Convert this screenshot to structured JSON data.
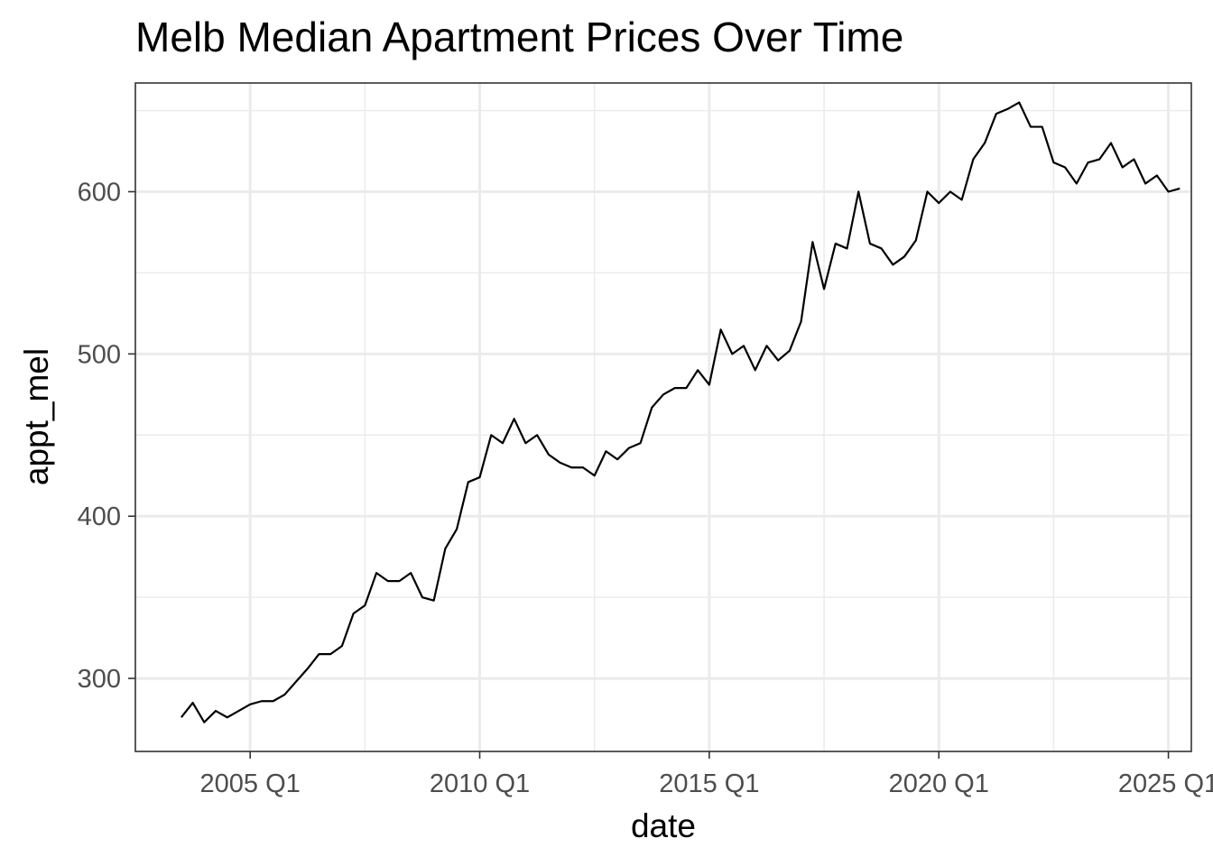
{
  "chart_data": {
    "type": "line",
    "title": "Melb Median Apartment Prices Over Time",
    "xlabel": "date",
    "ylabel": "appt_mel",
    "x_axis": {
      "ticks": [
        "2005 Q1",
        "2010 Q1",
        "2015 Q1",
        "2020 Q1",
        "2025 Q1"
      ],
      "range": [
        "2002 Q3",
        "2025 Q3"
      ]
    },
    "y_axis": {
      "ticks": [
        300,
        400,
        500,
        600
      ],
      "range": [
        255,
        667
      ]
    },
    "grid": true,
    "series": [
      {
        "color": "#000000",
        "x": [
          "2003 Q3",
          "2003 Q4",
          "2004 Q1",
          "2004 Q2",
          "2004 Q3",
          "2004 Q4",
          "2005 Q1",
          "2005 Q2",
          "2005 Q3",
          "2005 Q4",
          "2006 Q1",
          "2006 Q2",
          "2006 Q3",
          "2006 Q4",
          "2007 Q1",
          "2007 Q2",
          "2007 Q3",
          "2007 Q4",
          "2008 Q1",
          "2008 Q2",
          "2008 Q3",
          "2008 Q4",
          "2009 Q1",
          "2009 Q2",
          "2009 Q3",
          "2009 Q4",
          "2010 Q1",
          "2010 Q2",
          "2010 Q3",
          "2010 Q4",
          "2011 Q1",
          "2011 Q2",
          "2011 Q3",
          "2011 Q4",
          "2012 Q1",
          "2012 Q2",
          "2012 Q3",
          "2012 Q4",
          "2013 Q1",
          "2013 Q2",
          "2013 Q3",
          "2013 Q4",
          "2014 Q1",
          "2014 Q2",
          "2014 Q3",
          "2014 Q4",
          "2015 Q1",
          "2015 Q2",
          "2015 Q3",
          "2015 Q4",
          "2016 Q1",
          "2016 Q2",
          "2016 Q3",
          "2016 Q4",
          "2017 Q1",
          "2017 Q2",
          "2017 Q3",
          "2017 Q4",
          "2018 Q1",
          "2018 Q2",
          "2018 Q3",
          "2018 Q4",
          "2019 Q1",
          "2019 Q2",
          "2019 Q3",
          "2019 Q4",
          "2020 Q1",
          "2020 Q2",
          "2020 Q3",
          "2020 Q4",
          "2021 Q1",
          "2021 Q2",
          "2021 Q3",
          "2021 Q4",
          "2022 Q1",
          "2022 Q2",
          "2022 Q3",
          "2022 Q4",
          "2023 Q1",
          "2023 Q2",
          "2023 Q3",
          "2023 Q4",
          "2024 Q1",
          "2024 Q2",
          "2024 Q3",
          "2024 Q4",
          "2025 Q1",
          "2025 Q2"
        ],
        "values": [
          276,
          285,
          273,
          280,
          276,
          280,
          284,
          286,
          286,
          290,
          298,
          306,
          315,
          315,
          320,
          340,
          345,
          365,
          360,
          360,
          365,
          350,
          348,
          380,
          392,
          421,
          424,
          450,
          445,
          460,
          445,
          450,
          438,
          433,
          430,
          430,
          425,
          440,
          435,
          442,
          445,
          467,
          475,
          479,
          479,
          490,
          481,
          515,
          500,
          505,
          490,
          505,
          496,
          502,
          520,
          569,
          540,
          568,
          565,
          600,
          568,
          565,
          555,
          560,
          570,
          600,
          593,
          600,
          595,
          620,
          630,
          648,
          651,
          655,
          640,
          640,
          618,
          615,
          605,
          618,
          620,
          630,
          615,
          620,
          605,
          610,
          600,
          602
        ]
      }
    ]
  }
}
